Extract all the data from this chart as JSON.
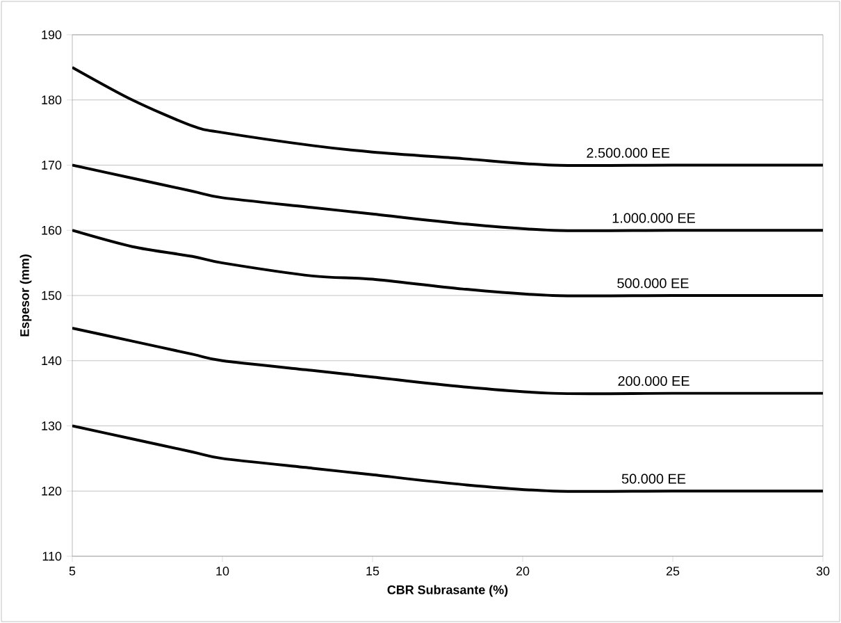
{
  "chart_data": {
    "type": "line",
    "xlabel": "CBR Subrasante (%)",
    "ylabel": "Espesor (mm)",
    "x": [
      5,
      7,
      9,
      10,
      13,
      15,
      18,
      21,
      25,
      30
    ],
    "series": [
      {
        "name": "2.500.000 EE",
        "color": "#000000",
        "values": [
          185,
          180,
          176,
          175,
          173,
          172,
          171,
          170,
          170,
          170
        ]
      },
      {
        "name": "1.000.000 EE",
        "color": "#000000",
        "values": [
          170,
          168,
          166,
          165,
          163.5,
          162.5,
          161,
          160,
          160,
          160
        ]
      },
      {
        "name": "500.000 EE",
        "color": "#000000",
        "values": [
          160,
          157.5,
          156,
          155,
          153,
          152.5,
          151,
          150,
          150,
          150
        ]
      },
      {
        "name": "200.000 EE",
        "color": "#000000",
        "values": [
          145,
          143,
          141,
          140,
          138.5,
          137.5,
          136,
          135,
          135,
          135
        ]
      },
      {
        "name": "50.000 EE",
        "color": "#000000",
        "values": [
          130,
          128,
          126,
          125,
          123.5,
          122.5,
          121,
          120,
          120,
          120
        ]
      }
    ],
    "xlim": [
      5,
      30
    ],
    "xticks": [
      5,
      10,
      15,
      20,
      25,
      30
    ],
    "ylim": [
      110,
      190
    ],
    "yticks": [
      110,
      120,
      130,
      140,
      150,
      160,
      170,
      180,
      190
    ],
    "grid": "y",
    "marker": "none",
    "line_style": "solid"
  }
}
